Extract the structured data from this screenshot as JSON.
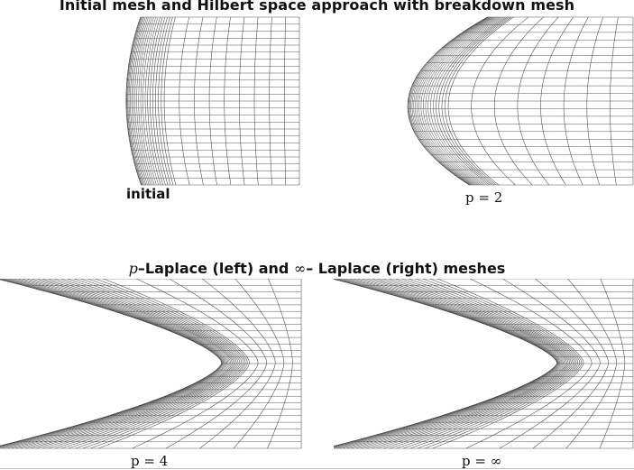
{
  "titles": {
    "top": "Initial mesh and Hilbert space approach with breakdown mesh",
    "mid_prefix": "p",
    "mid_middle": "–Laplace (left) and ",
    "mid_symbol": "∞",
    "mid_suffix": "– Laplace (right) meshes"
  },
  "panels": [
    {
      "id": "initial",
      "caption": "initial"
    },
    {
      "id": "p2",
      "caption": "p = 2"
    },
    {
      "id": "p4",
      "caption": "p = 4"
    },
    {
      "id": "pinf",
      "caption": "p = ∞"
    }
  ],
  "colors": {
    "mesh": "#555555",
    "mesh_dense": "#333333",
    "text": "#111111"
  }
}
